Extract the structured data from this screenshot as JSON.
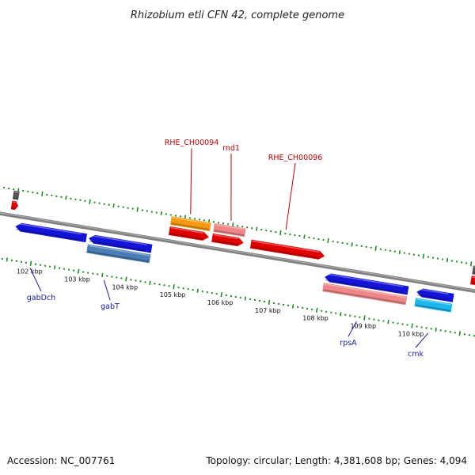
{
  "title": "Rhizobium etli CFN 42, complete genome",
  "footer": {
    "accession": "Accession: NC_007761",
    "summary": "Topology: circular; Length: 4,381,608 bp; Genes: 4,094"
  },
  "colors": {
    "backbone": "#808080",
    "tick_dots": "#1e8c1e",
    "top_label": "#c00000",
    "bottom_label": "#1a1ab0",
    "blue_gene": "#1414d8",
    "red_gene": "#e00000",
    "orange_gene": "#f59a10",
    "pink_gene": "#ee8888",
    "steel_gene": "#4a7db5",
    "cyan_gene": "#1ab8ee",
    "gray_gene": "#555555"
  },
  "scale": {
    "unit": "kbp",
    "major_ticks": [
      102,
      103,
      104,
      105,
      106,
      107,
      108,
      109,
      110
    ],
    "tick_labels": [
      "102 kbp",
      "103 kbp",
      "104 kbp",
      "105 kbp",
      "106 kbp",
      "107 kbp",
      "108 kbp",
      "109 kbp",
      "110 kbp"
    ]
  },
  "genes": [
    {
      "name": "",
      "start": 101.41,
      "end": 101.55,
      "strand": "+",
      "lane": 1,
      "color": "red_gene"
    },
    {
      "name": "",
      "start": 101.41,
      "end": 101.53,
      "strand": "+",
      "lane": 2,
      "color": "gray_gene"
    },
    {
      "name": "gabDch",
      "start": 101.56,
      "end": 103.05,
      "strand": "-",
      "lane": -1,
      "color": "blue_gene"
    },
    {
      "name": "gabT",
      "start": 103.1,
      "end": 104.42,
      "strand": "-",
      "lane": -1,
      "color": "blue_gene"
    },
    {
      "name": "",
      "start": 103.1,
      "end": 104.42,
      "strand": "-",
      "lane": -2,
      "color": "steel_gene"
    },
    {
      "name": "",
      "start": 104.72,
      "end": 105.55,
      "strand": "+",
      "lane": 1,
      "color": "red_gene"
    },
    {
      "name": "RHE_CH00094",
      "start": 104.72,
      "end": 105.55,
      "strand": "+",
      "lane": 2,
      "color": "orange_gene"
    },
    {
      "name": "",
      "start": 105.62,
      "end": 106.28,
      "strand": "+",
      "lane": 1,
      "color": "red_gene"
    },
    {
      "name": "rnd1",
      "start": 105.62,
      "end": 106.28,
      "strand": "+",
      "lane": 2,
      "color": "pink_gene"
    },
    {
      "name": "RHE_CH00096",
      "start": 106.43,
      "end": 107.98,
      "strand": "+",
      "lane": 1,
      "color": "red_gene"
    },
    {
      "name": "rpsA",
      "start": 108.05,
      "end": 109.8,
      "strand": "-",
      "lane": -1,
      "color": "blue_gene"
    },
    {
      "name": "",
      "start": 108.05,
      "end": 109.8,
      "strand": "-",
      "lane": -2,
      "color": "pink_gene"
    },
    {
      "name": "cmk",
      "start": 109.98,
      "end": 110.75,
      "strand": "-",
      "lane": -1,
      "color": "blue_gene"
    },
    {
      "name": "",
      "start": 109.98,
      "end": 110.75,
      "strand": "-",
      "lane": -2,
      "color": "cyan_gene"
    },
    {
      "name": "",
      "start": 111.05,
      "end": 111.3,
      "strand": "+",
      "lane": 1,
      "color": "red_gene"
    },
    {
      "name": "",
      "start": 111.05,
      "end": 111.3,
      "strand": "+",
      "lane": 2,
      "color": "gray_gene"
    }
  ]
}
